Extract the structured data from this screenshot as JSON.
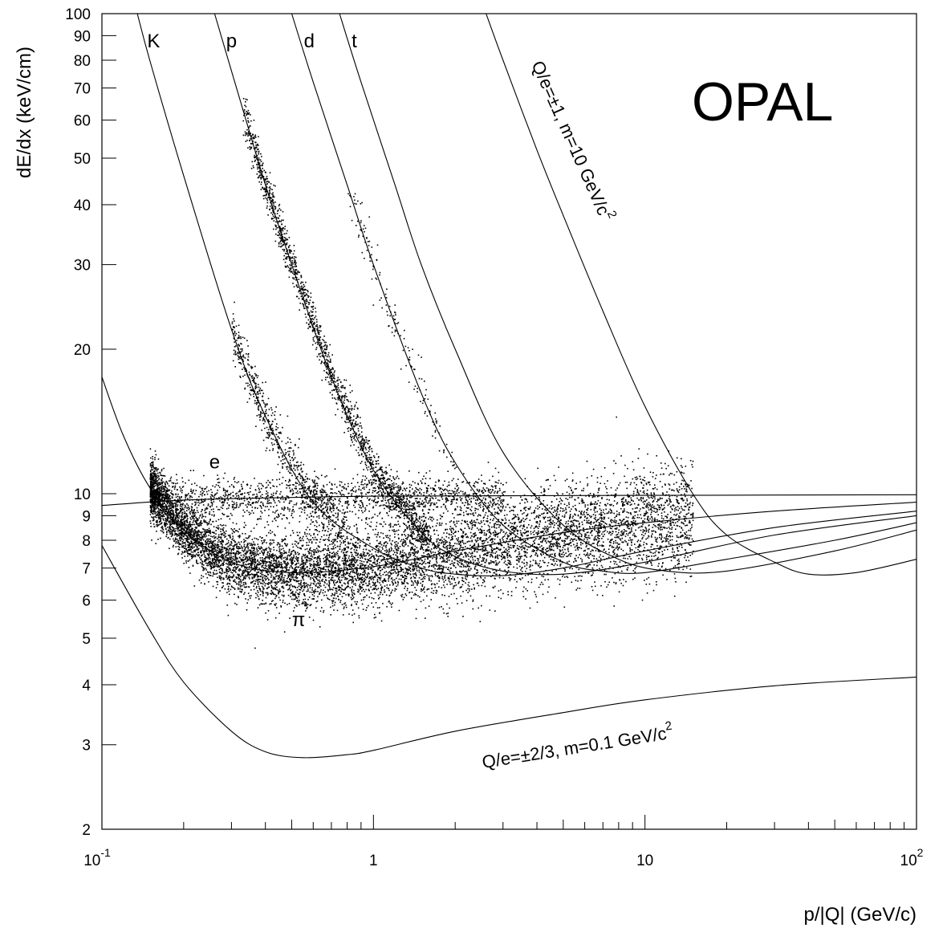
{
  "chart_data": {
    "type": "scatter",
    "title": "",
    "brand_label": "OPAL",
    "xlabel": "p/|Q| (GeV/c)",
    "ylabel": "dE/dx (keV/cm)",
    "x_scale": "log",
    "y_scale": "log",
    "xlim": [
      0.1,
      100
    ],
    "ylim": [
      2,
      100
    ],
    "x_ticks": [
      {
        "value": 0.1,
        "base": "10",
        "exp": "-1"
      },
      {
        "value": 1,
        "base": "1",
        "exp": ""
      },
      {
        "value": 10,
        "base": "10",
        "exp": ""
      },
      {
        "value": 100,
        "base": "10",
        "exp": "2"
      }
    ],
    "y_ticks": [
      {
        "value": 2,
        "label": "2"
      },
      {
        "value": 3,
        "label": "3"
      },
      {
        "value": 4,
        "label": "4"
      },
      {
        "value": 5,
        "label": "5"
      },
      {
        "value": 6,
        "label": "6"
      },
      {
        "value": 7,
        "label": "7"
      },
      {
        "value": 8,
        "label": "8"
      },
      {
        "value": 9,
        "label": "9"
      },
      {
        "value": 10,
        "label": "10"
      },
      {
        "value": 20,
        "label": "20"
      },
      {
        "value": 30,
        "label": "30"
      },
      {
        "value": 40,
        "label": "40"
      },
      {
        "value": 50,
        "label": "50"
      },
      {
        "value": 60,
        "label": "60"
      },
      {
        "value": 70,
        "label": "70"
      },
      {
        "value": 80,
        "label": "80"
      },
      {
        "value": 90,
        "label": "90"
      },
      {
        "value": 100,
        "label": "100"
      }
    ],
    "grid": false,
    "legend": "none",
    "series": [
      {
        "name": "e",
        "kind": "curve",
        "points": [
          [
            0.1,
            9.45
          ],
          [
            0.2,
            9.7
          ],
          [
            0.5,
            9.82
          ],
          [
            1,
            9.88
          ],
          [
            3,
            9.9
          ],
          [
            10,
            9.92
          ],
          [
            100,
            9.95
          ]
        ]
      },
      {
        "name": "π",
        "kind": "curve",
        "points": [
          [
            0.1,
            17.5
          ],
          [
            0.12,
            13.2
          ],
          [
            0.15,
            10.3
          ],
          [
            0.2,
            8.4
          ],
          [
            0.3,
            7.2
          ],
          [
            0.5,
            6.85
          ],
          [
            1,
            7.05
          ],
          [
            2,
            7.6
          ],
          [
            5,
            8.3
          ],
          [
            10,
            8.7
          ],
          [
            30,
            9.2
          ],
          [
            100,
            9.6
          ]
        ]
      },
      {
        "name": "K",
        "kind": "curve",
        "points": [
          [
            0.135,
            100
          ],
          [
            0.15,
            80
          ],
          [
            0.2,
            46
          ],
          [
            0.3,
            22
          ],
          [
            0.4,
            14.5
          ],
          [
            0.6,
            9.6
          ],
          [
            1,
            7.7
          ],
          [
            1.5,
            7.0
          ],
          [
            2,
            6.8
          ],
          [
            3,
            6.75
          ],
          [
            5,
            7.0
          ],
          [
            10,
            7.6
          ],
          [
            30,
            8.5
          ],
          [
            100,
            9.2
          ]
        ]
      },
      {
        "name": "p",
        "kind": "curve",
        "points": [
          [
            0.26,
            100
          ],
          [
            0.3,
            76
          ],
          [
            0.4,
            44
          ],
          [
            0.5,
            30
          ],
          [
            0.7,
            17.5
          ],
          [
            1,
            11.2
          ],
          [
            1.5,
            8.3
          ],
          [
            2,
            7.4
          ],
          [
            3,
            6.9
          ],
          [
            5,
            6.8
          ],
          [
            10,
            7.2
          ],
          [
            30,
            8.2
          ],
          [
            100,
            9.0
          ]
        ]
      },
      {
        "name": "d",
        "kind": "curve",
        "points": [
          [
            0.5,
            100
          ],
          [
            0.6,
            72
          ],
          [
            0.8,
            44
          ],
          [
            1,
            30
          ],
          [
            1.5,
            16.2
          ],
          [
            2,
            11.6
          ],
          [
            3,
            8.6
          ],
          [
            5,
            7.2
          ],
          [
            7,
            6.9
          ],
          [
            10,
            6.85
          ],
          [
            20,
            7.3
          ],
          [
            50,
            8.0
          ],
          [
            100,
            8.7
          ]
        ]
      },
      {
        "name": "t",
        "kind": "curve",
        "points": [
          [
            0.75,
            100
          ],
          [
            0.9,
            72
          ],
          [
            1.2,
            44
          ],
          [
            1.5,
            30
          ],
          [
            2,
            20
          ],
          [
            3,
            12.2
          ],
          [
            5,
            8.6
          ],
          [
            8,
            7.3
          ],
          [
            12,
            6.9
          ],
          [
            20,
            6.9
          ],
          [
            50,
            7.6
          ],
          [
            100,
            8.4
          ]
        ]
      },
      {
        "name": "Q/e=±1, m=10 GeV/c²",
        "kind": "curve",
        "points": [
          [
            2.6,
            100
          ],
          [
            3,
            80
          ],
          [
            4,
            52
          ],
          [
            5,
            38
          ],
          [
            7,
            24
          ],
          [
            10,
            15.2
          ],
          [
            15,
            10.0
          ],
          [
            20,
            8.2
          ],
          [
            30,
            7.2
          ],
          [
            40,
            6.8
          ],
          [
            60,
            6.85
          ],
          [
            100,
            7.3
          ]
        ]
      },
      {
        "name": "Q/e=±2/3, m=0.1 GeV/c²",
        "kind": "curve",
        "points": [
          [
            0.1,
            7.8
          ],
          [
            0.15,
            5.2
          ],
          [
            0.2,
            4.05
          ],
          [
            0.3,
            3.2
          ],
          [
            0.4,
            2.9
          ],
          [
            0.55,
            2.82
          ],
          [
            0.8,
            2.86
          ],
          [
            1,
            2.92
          ],
          [
            2,
            3.2
          ],
          [
            5,
            3.5
          ],
          [
            10,
            3.72
          ],
          [
            30,
            3.98
          ],
          [
            100,
            4.15
          ]
        ]
      }
    ],
    "scatter_bands": [
      {
        "follows": "π",
        "x_range": [
          0.15,
          15
        ],
        "count": 9000,
        "spread": 0.07
      },
      {
        "follows": "e",
        "x_range": [
          0.15,
          3
        ],
        "count": 1500,
        "spread": 0.05
      },
      {
        "follows": "K",
        "x_range": [
          0.3,
          0.8
        ],
        "count": 700,
        "spread": 0.06
      },
      {
        "follows": "p",
        "x_range": [
          0.33,
          1.6
        ],
        "count": 1600,
        "spread": 0.05
      },
      {
        "follows": "d",
        "x_range": [
          0.8,
          2
        ],
        "count": 160,
        "spread": 0.06
      }
    ],
    "annotations": [
      {
        "text": "K",
        "x": 0.155,
        "y": 85
      },
      {
        "text": "p",
        "x": 0.3,
        "y": 85
      },
      {
        "text": "d",
        "x": 0.58,
        "y": 85
      },
      {
        "text": "t",
        "x": 0.85,
        "y": 85
      },
      {
        "text": "e",
        "x": 0.26,
        "y": 11.3
      },
      {
        "text": "π",
        "x": 0.53,
        "y": 5.3
      }
    ]
  }
}
